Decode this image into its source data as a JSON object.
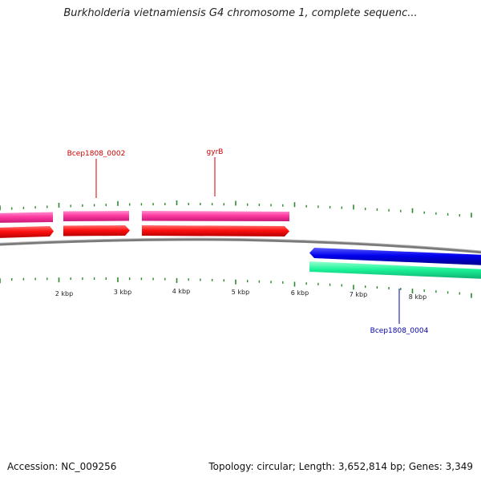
{
  "title": "Burkholderia vietnamiensis G4 chromosome 1, complete sequenc...",
  "footer": {
    "accession": "Accession: NC_009256",
    "summary": "Topology: circular; Length: 3,652,814 bp; Genes: 3,349"
  },
  "scale": {
    "ticks": [
      "2 kbp",
      "3 kbp",
      "4 kbp",
      "5 kbp",
      "6 kbp",
      "7 kbp",
      "8 kbp"
    ]
  },
  "genes": [
    {
      "name": "Bcep1808_0002",
      "strand": "forward",
      "label_color": "#cc0000"
    },
    {
      "name": "gyrB",
      "strand": "forward",
      "label_color": "#cc0000"
    },
    {
      "name": "Bcep1808_0004",
      "strand": "reverse",
      "label_color": "#0000aa"
    }
  ],
  "colors": {
    "cds_forward": "#ff1a1a",
    "gene_forward": "#ff4da6",
    "cds_reverse": "#0000e6",
    "gene_reverse": "#1aff99",
    "backbone": "#7a7a7a",
    "ticks": "#2a8a2a"
  }
}
